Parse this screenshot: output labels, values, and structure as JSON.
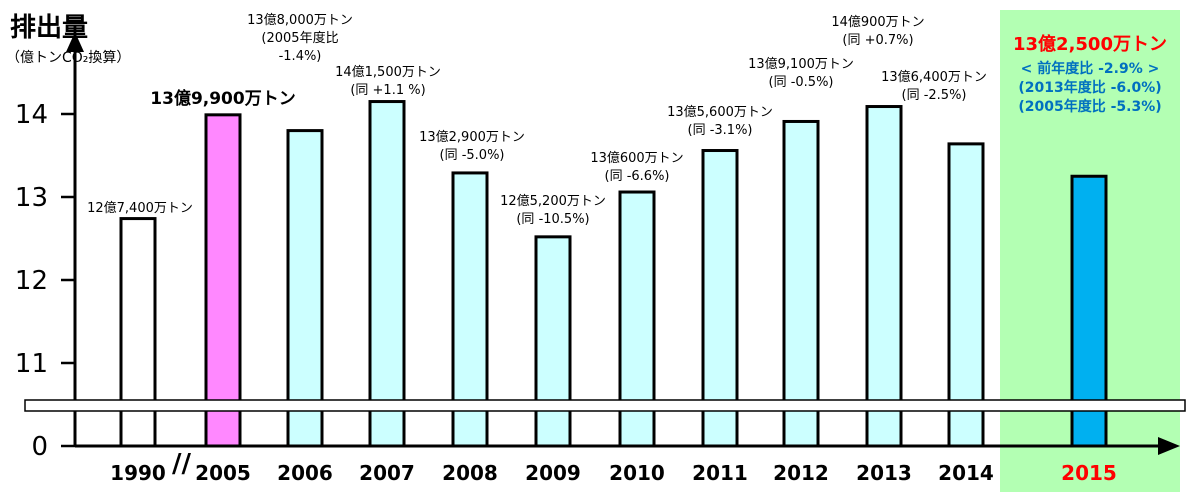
{
  "chart_data": {
    "type": "bar",
    "title": "排出量",
    "ylabel": "（億トンCO₂換算）",
    "y_ticks": [
      "0",
      "11",
      "12",
      "13",
      "14"
    ],
    "axis_break": "//",
    "categories": [
      "1990",
      "2005",
      "2006",
      "2007",
      "2008",
      "2009",
      "2010",
      "2011",
      "2012",
      "2013",
      "2014",
      "2015"
    ],
    "values": [
      12.74,
      13.99,
      13.8,
      14.15,
      13.29,
      12.52,
      13.06,
      13.56,
      13.91,
      14.09,
      13.64,
      13.25
    ],
    "ylim": [
      10.5,
      14.5
    ],
    "bar_labels": [
      [
        "12億7,400万トン"
      ],
      [
        "13億9,900万トン"
      ],
      [
        "13億8,000万トン",
        "(2005年度比",
        "-1.4%)"
      ],
      [
        "14億1,500万トン",
        "(同 +1.1 %)"
      ],
      [
        "13億2,900万トン",
        "(同 -5.0%)"
      ],
      [
        "12億5,200万トン",
        "(同 -10.5%)"
      ],
      [
        "13億600万トン",
        "(同 -6.6%)"
      ],
      [
        "13億5,600万トン",
        "(同 -3.1%)"
      ],
      [
        "13億9,100万トン",
        "(同 -0.5%)"
      ],
      [
        "14億900万トン",
        "(同 +0.7%)"
      ],
      [
        "13億6,400万トン",
        "(同 -2.5%)"
      ],
      [
        "13億2,500万トン",
        "< 前年度比 -2.9% >",
        "(2013年度比 -6.0%)",
        "(2005年度比 -5.3%)"
      ]
    ],
    "bar_colors": [
      "#ffffff",
      "#ff88ff",
      "#ccffff",
      "#ccffff",
      "#ccffff",
      "#ccffff",
      "#ccffff",
      "#ccffff",
      "#ccffff",
      "#ccffff",
      "#ccffff",
      "#00b0f0"
    ],
    "highlight": {
      "category": "2015",
      "panel_color": "#b3ffb3",
      "label_color": "#ff0000",
      "detail_color": "#0070c0"
    },
    "grid": false,
    "legend": "none"
  }
}
